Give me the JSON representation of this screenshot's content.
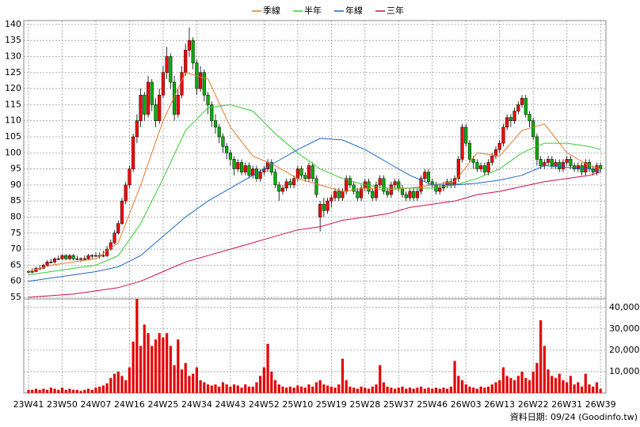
{
  "chart_data": {
    "type": "candlestick",
    "categories": [
      "23W41",
      null,
      null,
      null,
      null,
      null,
      null,
      null,
      null,
      "23W50",
      null,
      null,
      null,
      null,
      null,
      null,
      null,
      null,
      "24W07",
      null,
      null,
      null,
      null,
      null,
      null,
      null,
      null,
      "24W16",
      null,
      null,
      null,
      null,
      null,
      null,
      null,
      null,
      "24W25",
      null,
      null,
      null,
      null,
      null,
      null,
      null,
      null,
      "24W34",
      null,
      null,
      null,
      null,
      null,
      null,
      null,
      null,
      "24W43",
      null,
      null,
      null,
      null,
      null,
      null,
      null,
      null,
      "24W52",
      null,
      null,
      null,
      null,
      null,
      null,
      null,
      null,
      "25W10",
      null,
      null,
      null,
      null,
      null,
      null,
      null,
      null,
      "25W19",
      null,
      null,
      null,
      null,
      null,
      null,
      null,
      null,
      "25W28",
      null,
      null,
      null,
      null,
      null,
      null,
      null,
      null,
      "25W37",
      null,
      null,
      null,
      null,
      null,
      null,
      null,
      null,
      "25W46",
      null,
      null,
      null,
      null,
      null,
      null,
      null,
      null,
      "26W03",
      null,
      null,
      null,
      null,
      null,
      null,
      null,
      null,
      "26W13",
      null,
      null,
      null,
      null,
      null,
      null,
      null,
      null,
      "26W22",
      null,
      null,
      null,
      null,
      null,
      null,
      null,
      null,
      "26W31",
      null,
      null,
      null,
      null,
      null,
      null,
      null,
      null,
      "26W39"
    ],
    "ohlc": [
      [
        63,
        63.5,
        62.5,
        63
      ],
      [
        63,
        64,
        62.5,
        63
      ],
      [
        63,
        64.5,
        63,
        64
      ],
      [
        64,
        65,
        63.5,
        64
      ],
      [
        64,
        65.5,
        64,
        65
      ],
      [
        65,
        66.5,
        64.5,
        66
      ],
      [
        66,
        67,
        65.5,
        66
      ],
      [
        66,
        67.5,
        65.5,
        67
      ],
      [
        67,
        68,
        66.5,
        67
      ],
      [
        67,
        68.5,
        66.5,
        68
      ],
      [
        68,
        68.5,
        66.5,
        67
      ],
      [
        67,
        68.5,
        66.5,
        68
      ],
      [
        68,
        68.5,
        66.5,
        67
      ],
      [
        67,
        68,
        66.5,
        67
      ],
      [
        67,
        67.5,
        66,
        67
      ],
      [
        67,
        68,
        66.5,
        67
      ],
      [
        67,
        68.5,
        66.5,
        68
      ],
      [
        68,
        68.5,
        67,
        68
      ],
      [
        68,
        69,
        67.5,
        68
      ],
      [
        68,
        69,
        67,
        68
      ],
      [
        68,
        69.5,
        67.5,
        68
      ],
      [
        68,
        71,
        67.5,
        70
      ],
      [
        70,
        73,
        69.5,
        72
      ],
      [
        72,
        76,
        71.5,
        75
      ],
      [
        75,
        79,
        74.5,
        78
      ],
      [
        78,
        86,
        77.5,
        85
      ],
      [
        85,
        91,
        84,
        90
      ],
      [
        90,
        96,
        89,
        95
      ],
      [
        95,
        106,
        94,
        105
      ],
      [
        105,
        112,
        103,
        110
      ],
      [
        110,
        120,
        108,
        118
      ],
      [
        118,
        119,
        110,
        112
      ],
      [
        112,
        124,
        111,
        122
      ],
      [
        122,
        123,
        113,
        115
      ],
      [
        115,
        117,
        108,
        110
      ],
      [
        110,
        120,
        109,
        118
      ],
      [
        118,
        127,
        117,
        125
      ],
      [
        125,
        133,
        123,
        130
      ],
      [
        130,
        131,
        120,
        122
      ],
      [
        122,
        124,
        110,
        112
      ],
      [
        112,
        120,
        111,
        118
      ],
      [
        118,
        127,
        117,
        125
      ],
      [
        125,
        134,
        124,
        132
      ],
      [
        132,
        139,
        130,
        135
      ],
      [
        135,
        136,
        126,
        128
      ],
      [
        128,
        129,
        118,
        120
      ],
      [
        120,
        127,
        119,
        125
      ],
      [
        125,
        126,
        116,
        118
      ],
      [
        118,
        119,
        112,
        115
      ],
      [
        115,
        116,
        108,
        110
      ],
      [
        110,
        112,
        106,
        108
      ],
      [
        108,
        109,
        103,
        105
      ],
      [
        105,
        106,
        100,
        102
      ],
      [
        102,
        103,
        98,
        100
      ],
      [
        100,
        101,
        96,
        98
      ],
      [
        98,
        99,
        93,
        95
      ],
      [
        95,
        98,
        94,
        97
      ],
      [
        97,
        98,
        93,
        94
      ],
      [
        94,
        97,
        93,
        96
      ],
      [
        96,
        97,
        92,
        93
      ],
      [
        93,
        96,
        92,
        95
      ],
      [
        95,
        96,
        91,
        92
      ],
      [
        92,
        95,
        91,
        94
      ],
      [
        94,
        96,
        93,
        95
      ],
      [
        95,
        98,
        94,
        97
      ],
      [
        97,
        98,
        93,
        94
      ],
      [
        94,
        95,
        89,
        90
      ],
      [
        90,
        91,
        85,
        88
      ],
      [
        88,
        90,
        87,
        89
      ],
      [
        89,
        92,
        88,
        91
      ],
      [
        91,
        92,
        89,
        90
      ],
      [
        90,
        93,
        89,
        92
      ],
      [
        92,
        96,
        91,
        95
      ],
      [
        95,
        96,
        92,
        93
      ],
      [
        93,
        94,
        91,
        92
      ],
      [
        92,
        97,
        91,
        96
      ],
      [
        96,
        97,
        91,
        92
      ],
      [
        92,
        93,
        86,
        87
      ],
      [
        80,
        85,
        75.5,
        84
      ],
      [
        84,
        86,
        80,
        82
      ],
      [
        82,
        86,
        81,
        85
      ],
      [
        85,
        87,
        83,
        86
      ],
      [
        86,
        89,
        85,
        88
      ],
      [
        88,
        89,
        85,
        86
      ],
      [
        86,
        89,
        85,
        88
      ],
      [
        88,
        93,
        87,
        92
      ],
      [
        92,
        93,
        89,
        90
      ],
      [
        90,
        91,
        87,
        88
      ],
      [
        88,
        89,
        85,
        86
      ],
      [
        86,
        90,
        85,
        89
      ],
      [
        89,
        92,
        88,
        91
      ],
      [
        91,
        92,
        87,
        88
      ],
      [
        88,
        89,
        85,
        86
      ],
      [
        86,
        91,
        85,
        90
      ],
      [
        90,
        93,
        89,
        92
      ],
      [
        92,
        93,
        87,
        88
      ],
      [
        88,
        89,
        86,
        87
      ],
      [
        87,
        91,
        86,
        90
      ],
      [
        90,
        92,
        89,
        91
      ],
      [
        91,
        92,
        88,
        89
      ],
      [
        89,
        90,
        86,
        87
      ],
      [
        87,
        88,
        85,
        86
      ],
      [
        86,
        89,
        85,
        88
      ],
      [
        88,
        89,
        85,
        86
      ],
      [
        86,
        89,
        85,
        88
      ],
      [
        88,
        93,
        87,
        92
      ],
      [
        92,
        95,
        91,
        94
      ],
      [
        94,
        95,
        90,
        91
      ],
      [
        91,
        92,
        89,
        90
      ],
      [
        90,
        91,
        87,
        88
      ],
      [
        88,
        90,
        87,
        89
      ],
      [
        89,
        91,
        88,
        90
      ],
      [
        90,
        92,
        89,
        91
      ],
      [
        91,
        92,
        89,
        90
      ],
      [
        90,
        93,
        89,
        92
      ],
      [
        92,
        99,
        91,
        98
      ],
      [
        98,
        109,
        97,
        108
      ],
      [
        108,
        109,
        102,
        103
      ],
      [
        103,
        104,
        97,
        98
      ],
      [
        98,
        99,
        95,
        97
      ],
      [
        97,
        98,
        94,
        95
      ],
      [
        95,
        97,
        94,
        96
      ],
      [
        96,
        97,
        93,
        94
      ],
      [
        94,
        98,
        93,
        97
      ],
      [
        97,
        100,
        96,
        99
      ],
      [
        99,
        102,
        98,
        101
      ],
      [
        101,
        104,
        100,
        103
      ],
      [
        103,
        109,
        102,
        108
      ],
      [
        108,
        112,
        107,
        111
      ],
      [
        111,
        112,
        108,
        110
      ],
      [
        110,
        114,
        109,
        113
      ],
      [
        113,
        116,
        112,
        115
      ],
      [
        115,
        118,
        114,
        117
      ],
      [
        117,
        118,
        111,
        112
      ],
      [
        112,
        113,
        108,
        110
      ],
      [
        110,
        111,
        104,
        105
      ],
      [
        105,
        106,
        96,
        98
      ],
      [
        98,
        99,
        95,
        96
      ],
      [
        96,
        98,
        95,
        97
      ],
      [
        97,
        99,
        96,
        98
      ],
      [
        98,
        99,
        95,
        96
      ],
      [
        96,
        98,
        95,
        97
      ],
      [
        97,
        98,
        94,
        95
      ],
      [
        95,
        98,
        94,
        97
      ],
      [
        97,
        99,
        96,
        98
      ],
      [
        98,
        99,
        95,
        96
      ],
      [
        96,
        97,
        94,
        95
      ],
      [
        95,
        97,
        94,
        96
      ],
      [
        96,
        97,
        93,
        94
      ],
      [
        94,
        98,
        93,
        97
      ],
      [
        97,
        98,
        94,
        95
      ],
      [
        95,
        96,
        93,
        94
      ],
      [
        94,
        97,
        93,
        96
      ],
      [
        96,
        97,
        94,
        95
      ]
    ],
    "up_color": "#ff0000",
    "down_color": "#00b000",
    "ylim": [
      54.5,
      141.2
    ],
    "yticks": [
      55,
      60,
      65,
      70,
      75,
      80,
      85,
      90,
      95,
      100,
      105,
      110,
      115,
      120,
      125,
      130,
      135,
      140
    ],
    "grid": true,
    "ma": [
      {
        "name": "季線",
        "color": "#e8782a",
        "x": [
          0,
          6,
          12,
          18,
          24,
          30,
          36,
          42,
          48,
          54,
          60,
          66,
          72,
          78,
          84,
          90,
          96,
          102,
          108,
          114,
          120,
          126,
          132,
          138,
          144,
          150,
          153
        ],
        "values": [
          63,
          65,
          66,
          67,
          72,
          90,
          110,
          125,
          123,
          108,
          99,
          96,
          92,
          90,
          88,
          89,
          88.5,
          89,
          90,
          91,
          100,
          99,
          107,
          109,
          100,
          96,
          95
        ]
      },
      {
        "name": "半年",
        "color": "#33cc33",
        "x": [
          0,
          6,
          12,
          18,
          24,
          30,
          36,
          42,
          48,
          54,
          60,
          66,
          72,
          78,
          84,
          90,
          96,
          102,
          108,
          114,
          120,
          126,
          132,
          138,
          144,
          150,
          153
        ],
        "values": [
          62,
          63,
          64,
          65,
          68,
          78,
          92,
          107,
          114,
          115,
          113,
          106,
          100,
          95,
          92,
          90,
          89,
          89,
          89,
          90,
          92,
          95,
          100,
          103,
          103,
          102,
          101
        ]
      },
      {
        "name": "年線",
        "color": "#1a66cc",
        "x": [
          0,
          6,
          12,
          18,
          24,
          30,
          36,
          42,
          48,
          54,
          60,
          66,
          72,
          78,
          84,
          90,
          96,
          102,
          108,
          114,
          120,
          126,
          132,
          138,
          144,
          150,
          153
        ],
        "values": [
          60,
          61,
          62,
          63,
          64.5,
          68,
          74,
          80,
          85,
          89,
          93,
          97,
          101,
          104.5,
          104,
          101,
          97,
          93,
          90,
          90,
          90.5,
          91.5,
          93,
          96,
          95.5,
          95,
          94.5
        ]
      },
      {
        "name": "三年",
        "color": "#cc1144",
        "x": [
          0,
          6,
          12,
          18,
          24,
          30,
          36,
          42,
          48,
          54,
          60,
          66,
          72,
          78,
          84,
          90,
          96,
          102,
          108,
          114,
          120,
          126,
          132,
          138,
          144,
          150,
          153
        ],
        "values": [
          55,
          55.5,
          56,
          57,
          58,
          60,
          63,
          66,
          68,
          70,
          72,
          74,
          76,
          77,
          79,
          80,
          81,
          83,
          84,
          85,
          87,
          88,
          89.5,
          91,
          92,
          93,
          94
        ]
      }
    ],
    "volume": {
      "color": "#e60000",
      "ylim": [
        0,
        44000
      ],
      "yticks": [
        {
          "value": 10000,
          "label": "10,000"
        },
        {
          "value": 20000,
          "label": "20,000"
        },
        {
          "value": 30000,
          "label": "30,000"
        },
        {
          "value": 40000,
          "label": "40,000"
        }
      ],
      "values": [
        1500,
        1500,
        2000,
        1500,
        2000,
        1500,
        2500,
        2000,
        1500,
        2500,
        1500,
        2000,
        1500,
        1500,
        1000,
        1500,
        2000,
        1500,
        2500,
        3000,
        3500,
        4500,
        7000,
        9000,
        10000,
        8000,
        6000,
        12000,
        24000,
        44000,
        22000,
        32000,
        28000,
        22000,
        25000,
        28000,
        26000,
        28000,
        22000,
        13000,
        25000,
        11000,
        14000,
        8000,
        9000,
        12000,
        6000,
        5000,
        4000,
        3500,
        4000,
        3000,
        5000,
        4000,
        3000,
        4000,
        3500,
        2500,
        4000,
        3000,
        3000,
        5000,
        8000,
        12000,
        23000,
        10000,
        6000,
        4000,
        3000,
        2500,
        3000,
        2500,
        3500,
        3000,
        2500,
        4000,
        3000,
        5000,
        6000,
        4000,
        3500,
        3000,
        2500,
        4000,
        16000,
        6000,
        3000,
        2500,
        2000,
        3000,
        2500,
        2000,
        3000,
        4000,
        13000,
        5000,
        3000,
        2500,
        2000,
        2500,
        3000,
        2000,
        2500,
        2000,
        2500,
        3000,
        2000,
        2500,
        2000,
        2500,
        2000,
        2500,
        2000,
        3000,
        15000,
        8000,
        6000,
        4000,
        3000,
        2500,
        2000,
        3000,
        2500,
        3000,
        4000,
        5000,
        6000,
        12000,
        8000,
        7000,
        6000,
        8000,
        10000,
        7000,
        6000,
        10000,
        14000,
        34000,
        22000,
        11000,
        8000,
        7000,
        9000,
        6000,
        5000,
        8000,
        4000,
        5000,
        3000,
        9000,
        4000,
        3000,
        5000,
        2000
      ]
    },
    "source": "資料日期: 09/24  (Goodinfo.tw)"
  }
}
